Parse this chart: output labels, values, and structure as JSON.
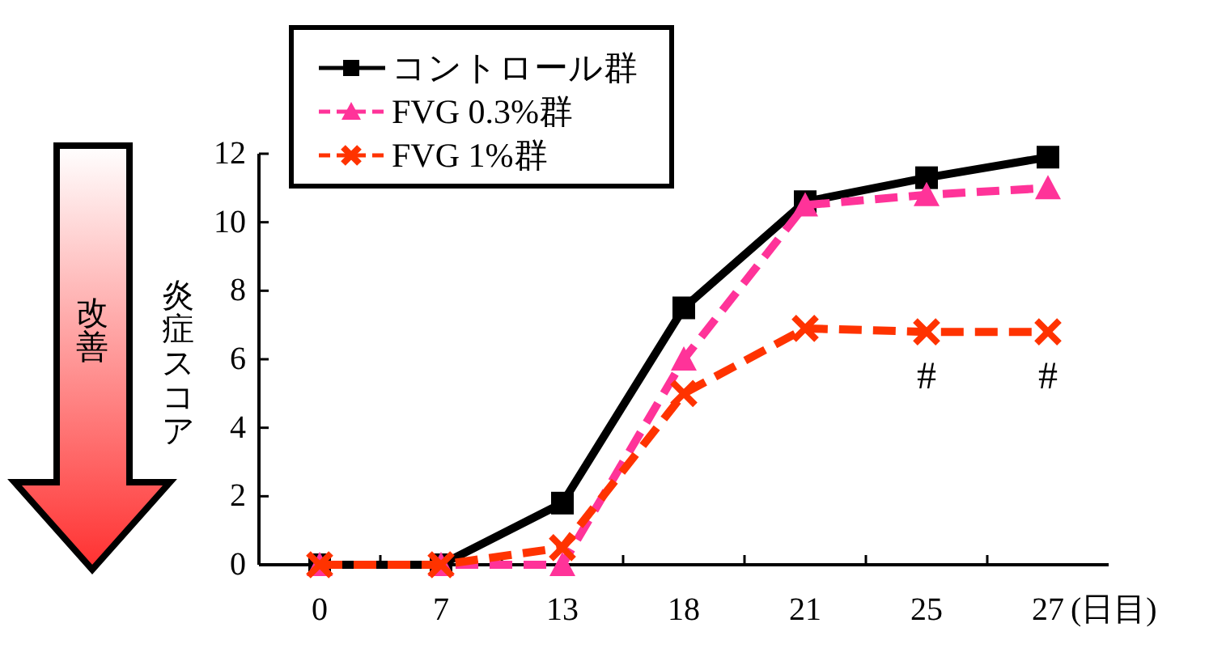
{
  "chart_data": {
    "type": "line",
    "categories": [
      "0",
      "7",
      "13",
      "18",
      "21",
      "25",
      "27"
    ],
    "xlabel": "(日目)",
    "ylabel": "炎症スコア",
    "ylim": [
      0,
      12
    ],
    "yticks": [
      0,
      2,
      4,
      6,
      8,
      10,
      12
    ],
    "grid": false,
    "legend": "top left",
    "series": [
      {
        "name": "コントロール群",
        "color": "#000000",
        "marker": "square",
        "line_style": "solid",
        "values": [
          0,
          0,
          1.8,
          7.5,
          10.6,
          11.3,
          11.9
        ]
      },
      {
        "name": "FVG 0.3%群",
        "color": "#ff3399",
        "marker": "triangle",
        "line_style": "dashed",
        "values": [
          0,
          0,
          0,
          6.0,
          10.5,
          10.8,
          11.0
        ]
      },
      {
        "name": "FVG 1%群",
        "color": "#ff3300",
        "marker": "cross",
        "line_style": "dashed",
        "values": [
          0,
          0,
          0.5,
          5.0,
          6.9,
          6.8,
          6.8
        ]
      }
    ],
    "annotations": [
      {
        "text": "#",
        "x": "25",
        "y": 6.8
      },
      {
        "text": "#",
        "x": "27",
        "y": 6.8
      },
      "改善"
    ]
  }
}
